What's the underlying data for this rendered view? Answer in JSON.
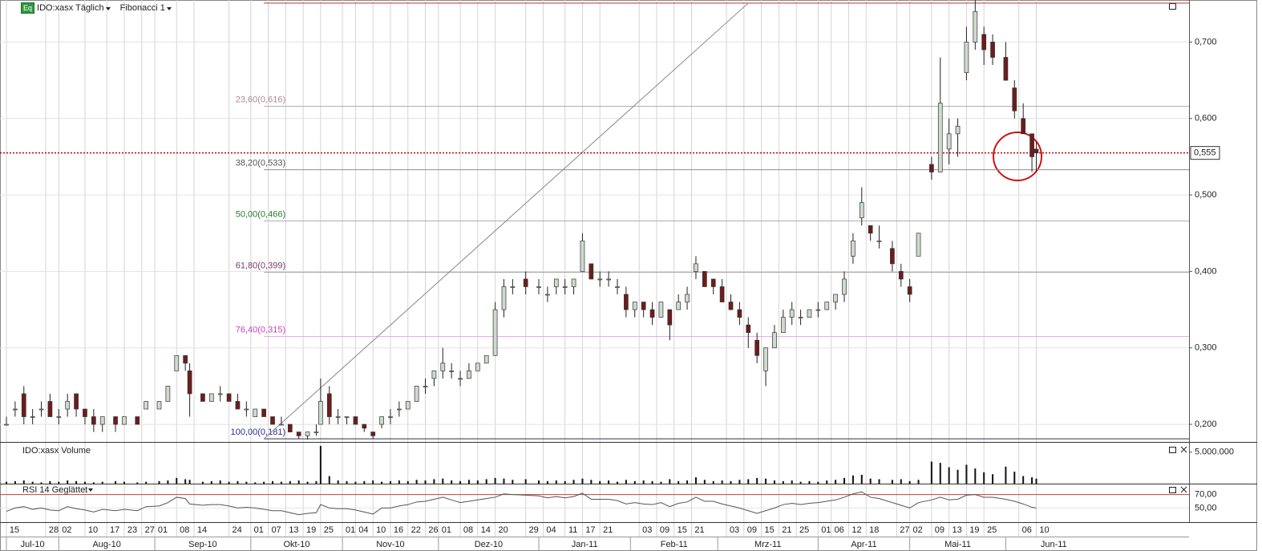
{
  "header": {
    "badge": "Eq",
    "symbol_label": "IDO:xasx Täglich",
    "indicator_label": "Fibonacci 1"
  },
  "chart_data": {
    "type": "candlestick",
    "x": [
      "2010-07-15",
      "2010-07-19",
      "2010-07-21",
      "2010-07-23",
      "2010-07-27",
      "2010-07-29",
      "2010-08-02",
      "2010-08-04",
      "2010-08-06",
      "2010-08-10",
      "2010-08-12",
      "2010-08-16",
      "2010-08-19",
      "2010-08-23",
      "2010-08-26",
      "2010-08-30",
      "2010-09-02",
      "2010-09-06",
      "2010-09-08",
      "2010-09-10",
      "2010-09-13",
      "2010-09-16",
      "2010-09-20",
      "2010-09-22",
      "2010-09-24",
      "2010-09-28",
      "2010-09-30",
      "2010-10-04",
      "2010-10-06",
      "2010-10-08",
      "2010-10-12",
      "2010-10-14",
      "2010-10-18",
      "2010-10-20",
      "2010-10-22",
      "2010-10-25",
      "2010-10-27",
      "2010-10-29",
      "2010-11-02",
      "2010-11-04",
      "2010-11-08",
      "2010-11-10",
      "2010-11-12",
      "2010-11-16",
      "2010-11-18",
      "2010-11-22",
      "2010-11-24",
      "2010-11-26",
      "2010-11-30",
      "2010-12-02",
      "2010-12-06",
      "2010-12-08",
      "2010-12-10",
      "2010-12-14",
      "2010-12-16",
      "2010-12-20",
      "2010-12-22",
      "2010-12-24",
      "2010-12-29",
      "2011-01-03",
      "2011-01-05",
      "2011-01-07",
      "2011-01-11",
      "2011-01-13",
      "2011-01-17",
      "2011-01-19",
      "2011-01-21",
      "2011-01-25",
      "2011-01-27",
      "2011-01-31",
      "2011-02-02",
      "2011-02-04",
      "2011-02-08",
      "2011-02-10",
      "2011-02-14",
      "2011-02-16",
      "2011-02-18",
      "2011-02-22",
      "2011-02-24",
      "2011-02-28",
      "2011-03-02",
      "2011-03-04",
      "2011-03-08",
      "2011-03-10",
      "2011-03-14",
      "2011-03-16",
      "2011-03-18",
      "2011-03-22",
      "2011-03-24",
      "2011-03-28",
      "2011-03-30",
      "2011-04-01",
      "2011-04-05",
      "2011-04-07",
      "2011-04-11",
      "2011-04-13",
      "2011-04-15",
      "2011-04-19",
      "2011-04-21",
      "2011-04-26",
      "2011-04-28",
      "2011-05-02",
      "2011-05-04",
      "2011-05-09",
      "2011-05-11",
      "2011-05-13",
      "2011-05-17",
      "2011-05-19",
      "2011-05-23",
      "2011-05-25",
      "2011-05-27",
      "2011-06-01",
      "2011-06-03",
      "2011-06-07",
      "2011-06-09",
      "2011-06-10"
    ],
    "open": [
      0.2,
      0.22,
      0.24,
      0.21,
      0.22,
      0.23,
      0.21,
      0.22,
      0.24,
      0.22,
      0.21,
      0.2,
      0.21,
      0.2,
      0.21,
      0.22,
      0.22,
      0.23,
      0.27,
      0.29,
      0.27,
      0.24,
      0.23,
      0.24,
      0.24,
      0.23,
      0.22,
      0.21,
      0.22,
      0.21,
      0.2,
      0.2,
      0.19,
      0.185,
      0.19,
      0.2,
      0.24,
      0.21,
      0.21,
      0.21,
      0.2,
      0.19,
      0.2,
      0.21,
      0.22,
      0.22,
      0.23,
      0.25,
      0.26,
      0.27,
      0.27,
      0.26,
      0.26,
      0.27,
      0.28,
      0.29,
      0.35,
      0.38,
      0.39,
      0.38,
      0.37,
      0.38,
      0.38,
      0.38,
      0.4,
      0.41,
      0.39,
      0.39,
      0.38,
      0.37,
      0.35,
      0.36,
      0.35,
      0.34,
      0.35,
      0.35,
      0.36,
      0.4,
      0.4,
      0.39,
      0.38,
      0.36,
      0.35,
      0.33,
      0.31,
      0.27,
      0.3,
      0.32,
      0.34,
      0.34,
      0.34,
      0.35,
      0.35,
      0.36,
      0.37,
      0.42,
      0.47,
      0.46,
      0.44,
      0.43,
      0.4,
      0.38,
      0.42,
      0.54,
      0.53,
      0.56,
      0.58,
      0.66,
      0.7,
      0.71,
      0.7,
      0.68,
      0.64,
      0.6,
      0.58,
      0.56
    ],
    "high": [
      0.21,
      0.23,
      0.25,
      0.22,
      0.23,
      0.24,
      0.22,
      0.24,
      0.24,
      0.22,
      0.22,
      0.21,
      0.21,
      0.21,
      0.21,
      0.23,
      0.23,
      0.25,
      0.29,
      0.29,
      0.28,
      0.24,
      0.24,
      0.25,
      0.24,
      0.24,
      0.23,
      0.22,
      0.22,
      0.21,
      0.21,
      0.2,
      0.19,
      0.19,
      0.2,
      0.26,
      0.25,
      0.22,
      0.21,
      0.21,
      0.2,
      0.19,
      0.21,
      0.22,
      0.23,
      0.23,
      0.25,
      0.26,
      0.27,
      0.3,
      0.28,
      0.27,
      0.28,
      0.28,
      0.29,
      0.36,
      0.39,
      0.39,
      0.4,
      0.39,
      0.38,
      0.39,
      0.39,
      0.39,
      0.45,
      0.41,
      0.4,
      0.4,
      0.39,
      0.38,
      0.36,
      0.36,
      0.36,
      0.36,
      0.35,
      0.37,
      0.38,
      0.42,
      0.4,
      0.39,
      0.39,
      0.37,
      0.36,
      0.34,
      0.32,
      0.3,
      0.33,
      0.35,
      0.36,
      0.35,
      0.35,
      0.36,
      0.36,
      0.37,
      0.4,
      0.45,
      0.51,
      0.46,
      0.46,
      0.44,
      0.41,
      0.39,
      0.45,
      0.55,
      0.68,
      0.6,
      0.6,
      0.72,
      0.755,
      0.72,
      0.71,
      0.7,
      0.65,
      0.62,
      0.58,
      0.57
    ],
    "low": [
      0.2,
      0.21,
      0.2,
      0.2,
      0.21,
      0.21,
      0.2,
      0.21,
      0.21,
      0.2,
      0.19,
      0.19,
      0.19,
      0.2,
      0.2,
      0.22,
      0.22,
      0.23,
      0.27,
      0.27,
      0.21,
      0.23,
      0.23,
      0.23,
      0.23,
      0.22,
      0.21,
      0.21,
      0.21,
      0.2,
      0.2,
      0.19,
      0.181,
      0.18,
      0.185,
      0.2,
      0.2,
      0.2,
      0.2,
      0.2,
      0.19,
      0.181,
      0.195,
      0.2,
      0.21,
      0.22,
      0.23,
      0.24,
      0.25,
      0.26,
      0.26,
      0.25,
      0.26,
      0.27,
      0.28,
      0.29,
      0.34,
      0.37,
      0.37,
      0.37,
      0.36,
      0.37,
      0.37,
      0.37,
      0.4,
      0.39,
      0.38,
      0.38,
      0.37,
      0.34,
      0.34,
      0.34,
      0.33,
      0.34,
      0.31,
      0.35,
      0.35,
      0.39,
      0.38,
      0.37,
      0.36,
      0.35,
      0.33,
      0.3,
      0.28,
      0.25,
      0.3,
      0.32,
      0.33,
      0.33,
      0.34,
      0.34,
      0.35,
      0.35,
      0.36,
      0.41,
      0.46,
      0.44,
      0.43,
      0.4,
      0.38,
      0.36,
      0.42,
      0.52,
      0.53,
      0.54,
      0.55,
      0.65,
      0.69,
      0.67,
      0.67,
      0.65,
      0.6,
      0.58,
      0.53,
      0.53
    ],
    "close": [
      0.2,
      0.22,
      0.21,
      0.21,
      0.22,
      0.21,
      0.21,
      0.23,
      0.22,
      0.21,
      0.2,
      0.21,
      0.2,
      0.21,
      0.2,
      0.23,
      0.23,
      0.25,
      0.29,
      0.28,
      0.24,
      0.23,
      0.24,
      0.24,
      0.23,
      0.22,
      0.22,
      0.22,
      0.21,
      0.2,
      0.2,
      0.19,
      0.185,
      0.19,
      0.19,
      0.23,
      0.21,
      0.21,
      0.21,
      0.2,
      0.195,
      0.185,
      0.21,
      0.21,
      0.22,
      0.23,
      0.25,
      0.25,
      0.27,
      0.28,
      0.27,
      0.26,
      0.27,
      0.28,
      0.29,
      0.35,
      0.38,
      0.38,
      0.38,
      0.38,
      0.37,
      0.39,
      0.38,
      0.39,
      0.44,
      0.39,
      0.39,
      0.39,
      0.38,
      0.35,
      0.36,
      0.35,
      0.34,
      0.36,
      0.33,
      0.36,
      0.37,
      0.41,
      0.38,
      0.38,
      0.36,
      0.35,
      0.34,
      0.32,
      0.29,
      0.3,
      0.32,
      0.34,
      0.35,
      0.34,
      0.35,
      0.35,
      0.36,
      0.37,
      0.39,
      0.44,
      0.49,
      0.45,
      0.44,
      0.41,
      0.39,
      0.37,
      0.45,
      0.53,
      0.62,
      0.58,
      0.59,
      0.7,
      0.74,
      0.69,
      0.68,
      0.65,
      0.61,
      0.58,
      0.55,
      0.555
    ],
    "up_color": "#cfdacf",
    "down_color": "#6e1c1c",
    "xlim": [
      "2010-07-15",
      "2011-07-29"
    ],
    "xticks": [
      {
        "value": "2010-07-15",
        "label": "15"
      },
      {
        "value": "2010-07-28",
        "label": "28"
      },
      {
        "value": "2010-08-02",
        "label": "02"
      },
      {
        "value": "2010-08-10",
        "label": "10"
      },
      {
        "value": "2010-08-17",
        "label": "17"
      },
      {
        "value": "2010-08-23",
        "label": "23"
      },
      {
        "value": "2010-08-27",
        "label": "27"
      },
      {
        "value": "2010-09-01",
        "label": "01"
      },
      {
        "value": "2010-09-08",
        "label": "08"
      },
      {
        "value": "2010-09-14",
        "label": "14"
      },
      {
        "value": "2010-09-24",
        "label": "24"
      },
      {
        "value": "2010-10-01",
        "label": "01"
      },
      {
        "value": "2010-10-07",
        "label": "07"
      },
      {
        "value": "2010-10-13",
        "label": "13"
      },
      {
        "value": "2010-10-19",
        "label": "19"
      },
      {
        "value": "2010-10-25",
        "label": "25"
      },
      {
        "value": "2010-11-01",
        "label": "01"
      },
      {
        "value": "2010-11-04",
        "label": "04"
      },
      {
        "value": "2010-11-10",
        "label": "10"
      },
      {
        "value": "2010-11-16",
        "label": "16"
      },
      {
        "value": "2010-11-22",
        "label": "22"
      },
      {
        "value": "2010-11-26",
        "label": "26"
      },
      {
        "value": "2010-12-01",
        "label": "01"
      },
      {
        "value": "2010-12-08",
        "label": "08"
      },
      {
        "value": "2010-12-14",
        "label": "14"
      },
      {
        "value": "2010-12-20",
        "label": "20"
      },
      {
        "value": "2010-12-29",
        "label": "29"
      },
      {
        "value": "2011-01-04",
        "label": "04"
      },
      {
        "value": "2011-01-11",
        "label": "11"
      },
      {
        "value": "2011-01-17",
        "label": "17"
      },
      {
        "value": "2011-01-21",
        "label": "21"
      },
      {
        "value": "2011-02-03",
        "label": "03"
      },
      {
        "value": "2011-02-09",
        "label": "09"
      },
      {
        "value": "2011-02-15",
        "label": "15"
      },
      {
        "value": "2011-02-21",
        "label": "21"
      },
      {
        "value": "2011-03-03",
        "label": "03"
      },
      {
        "value": "2011-03-09",
        "label": "09"
      },
      {
        "value": "2011-03-15",
        "label": "15"
      },
      {
        "value": "2011-03-21",
        "label": "21"
      },
      {
        "value": "2011-03-25",
        "label": "25"
      },
      {
        "value": "2011-04-01",
        "label": "01"
      },
      {
        "value": "2011-04-06",
        "label": "06"
      },
      {
        "value": "2011-04-12",
        "label": "12"
      },
      {
        "value": "2011-04-18",
        "label": "18"
      },
      {
        "value": "2011-04-27",
        "label": "27"
      },
      {
        "value": "2011-05-02",
        "label": "02"
      },
      {
        "value": "2011-05-09",
        "label": "09"
      },
      {
        "value": "2011-05-13",
        "label": "13"
      },
      {
        "value": "2011-05-19",
        "label": "19"
      },
      {
        "value": "2011-05-25",
        "label": "25"
      },
      {
        "value": "2011-06-06",
        "label": "06"
      },
      {
        "value": "2011-06-10",
        "label": "10"
      }
    ],
    "month_ticks": [
      {
        "value": "2010-07",
        "label": "Jul-10"
      },
      {
        "value": "2010-08",
        "label": "Aug-10"
      },
      {
        "value": "2010-09",
        "label": "Sep-10"
      },
      {
        "value": "2010-10",
        "label": "Okt-10"
      },
      {
        "value": "2010-11",
        "label": "Nov-10"
      },
      {
        "value": "2010-12",
        "label": "Dez-10"
      },
      {
        "value": "2011-01",
        "label": "Jan-11"
      },
      {
        "value": "2011-02",
        "label": "Feb-11"
      },
      {
        "value": "2011-03",
        "label": "Mrz-11"
      },
      {
        "value": "2011-04",
        "label": "Apr-11"
      },
      {
        "value": "2011-05",
        "label": "Mai-11"
      },
      {
        "value": "2011-06",
        "label": "Jun-11"
      }
    ],
    "ylim": [
      0.177,
      0.755
    ],
    "yticks": [
      {
        "value": 0.2,
        "label": "0,200"
      },
      {
        "value": 0.3,
        "label": "0,300"
      },
      {
        "value": 0.4,
        "label": "0,400"
      },
      {
        "value": 0.5,
        "label": "0,500"
      },
      {
        "value": 0.6,
        "label": "0,600"
      },
      {
        "value": 0.7,
        "label": "0,700"
      }
    ],
    "grid": true,
    "current_price": {
      "value": 0.555,
      "label": "0,555",
      "color": "#c00000"
    },
    "fibonacci": {
      "start_date": "2010-10-06",
      "end_date": "2011-03-10",
      "high": 0.751,
      "high_color": "#c03030",
      "levels": [
        {
          "value": 0.616,
          "label": "23,60(0,616)",
          "color": "#b08a8a",
          "line_color": "#b0b0b0"
        },
        {
          "value": 0.533,
          "label": "38,20(0,533)",
          "color": "#555555",
          "line_color": "#909090"
        },
        {
          "value": 0.466,
          "label": "50,00(0,466)",
          "color": "#2a7a2a",
          "line_color": "#b0b0b0"
        },
        {
          "value": 0.399,
          "label": "61,80(0,399)",
          "color": "#7a3a6a",
          "line_color": "#a0a0a0"
        },
        {
          "value": 0.315,
          "label": "76,40(0,315)",
          "color": "#d040c0",
          "line_color": "#f0a8f0"
        },
        {
          "value": 0.181,
          "label": "100,00(0,181)",
          "color": "#2a2a9a",
          "line_color": "#333355"
        }
      ]
    },
    "panels": [
      {
        "type": "bar",
        "title": "IDO:xasx Volume",
        "color": "#111111",
        "ylim": [
          0,
          6500000
        ],
        "yticks": [
          {
            "value": 5000000,
            "label": "5.000.000"
          }
        ],
        "values": [
          300000,
          400000,
          500000,
          300000,
          200000,
          400000,
          300000,
          500000,
          400000,
          300000,
          200000,
          300000,
          400000,
          300000,
          200000,
          300000,
          400000,
          500000,
          900000,
          700000,
          600000,
          300000,
          400000,
          500000,
          300000,
          400000,
          300000,
          200000,
          300000,
          400000,
          300000,
          400000,
          500000,
          300000,
          400000,
          6000000,
          1200000,
          500000,
          400000,
          300000,
          400000,
          500000,
          300000,
          400000,
          500000,
          400000,
          600000,
          500000,
          700000,
          800000,
          500000,
          400000,
          600000,
          500000,
          700000,
          900000,
          800000,
          600000,
          700000,
          500000,
          400000,
          500000,
          400000,
          600000,
          800000,
          600000,
          400000,
          500000,
          300000,
          600000,
          400000,
          500000,
          400000,
          300000,
          700000,
          400000,
          500000,
          1000000,
          600000,
          400000,
          500000,
          400000,
          600000,
          700000,
          900000,
          800000,
          500000,
          400000,
          500000,
          300000,
          400000,
          300000,
          500000,
          600000,
          900000,
          1300000,
          1400000,
          800000,
          700000,
          600000,
          700000,
          400000,
          600000,
          3500000,
          3300000,
          2600000,
          2200000,
          3000000,
          2400000,
          1800000,
          1500000,
          2700000,
          1900000,
          1200000,
          1000000,
          800000
        ]
      },
      {
        "type": "line",
        "title": "RSI 14 Geglättet",
        "color": "#555555",
        "ylim": [
          29,
          85
        ],
        "yticks": [
          {
            "value": 70,
            "label": "70,00"
          },
          {
            "value": 50,
            "label": "50,00"
          }
        ],
        "grid_colors": [
          "#c04040",
          "#e4e4e4"
        ],
        "values": [
          45,
          50,
          52,
          48,
          50,
          47,
          46,
          52,
          49,
          47,
          44,
          48,
          46,
          48,
          46,
          52,
          53,
          58,
          66,
          64,
          56,
          54,
          55,
          55,
          53,
          50,
          51,
          50,
          48,
          46,
          46,
          43,
          40,
          42,
          43,
          55,
          50,
          49,
          49,
          47,
          44,
          41,
          50,
          50,
          53,
          55,
          59,
          60,
          63,
          66,
          62,
          58,
          60,
          62,
          64,
          66,
          71,
          70,
          69,
          68,
          65,
          67,
          65,
          67,
          72,
          63,
          63,
          63,
          61,
          56,
          58,
          56,
          55,
          58,
          52,
          57,
          59,
          66,
          60,
          60,
          56,
          53,
          50,
          46,
          42,
          46,
          50,
          55,
          57,
          55,
          57,
          58,
          60,
          62,
          66,
          71,
          74,
          66,
          64,
          58,
          54,
          50,
          58,
          62,
          66,
          62,
          63,
          69,
          70,
          66,
          66,
          63,
          60,
          56,
          51,
          50
        ]
      }
    ]
  }
}
